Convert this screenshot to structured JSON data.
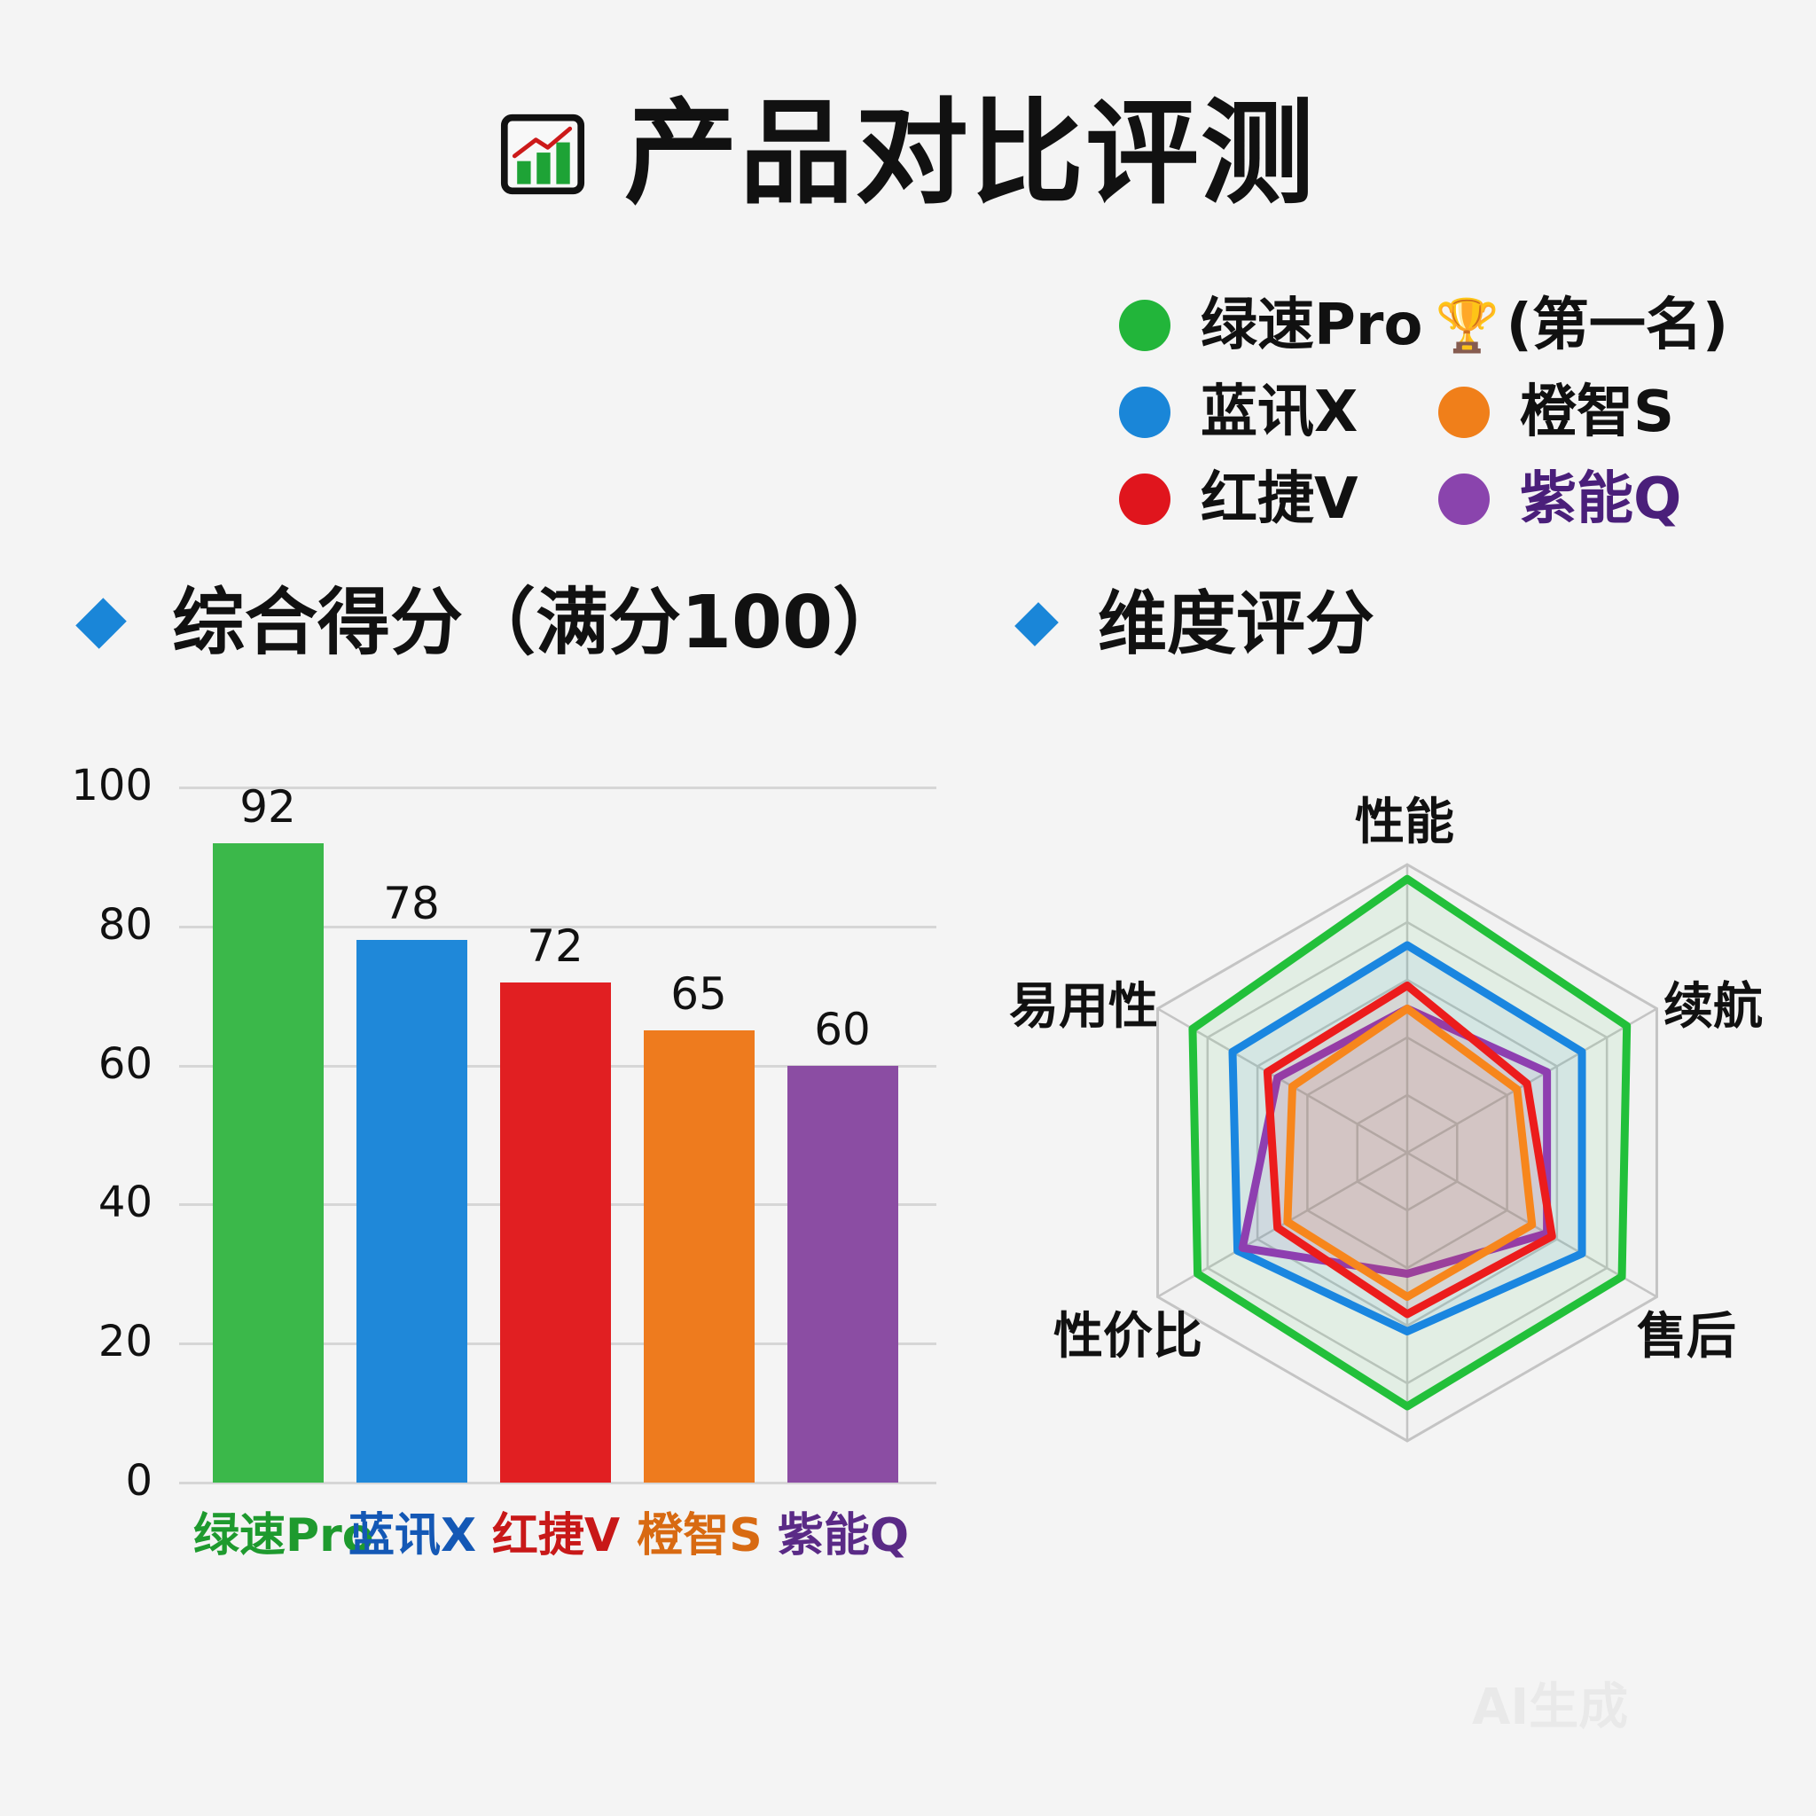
{
  "title": {
    "icon": "chart-trend-icon",
    "text": "产品对比评测"
  },
  "legend": {
    "items": [
      {
        "label": "绿速Pro",
        "color": "#22b53a",
        "badge": "🏆",
        "note": "(第一名)"
      },
      {
        "label": "蓝讯X",
        "color": "#1a86d8"
      },
      {
        "label": "橙智S",
        "color": "#f07f1a"
      },
      {
        "label": "红捷V",
        "color": "#e0151d"
      },
      {
        "label": "紫能Q",
        "color": "#8a44ad",
        "text_color": "#4a1f7a"
      }
    ]
  },
  "sections": {
    "overall": "综合得分（满分100）",
    "dimensions": "维度评分"
  },
  "watermark": "AI生成",
  "chart_data": [
    {
      "type": "bar",
      "title": "综合得分（满分100）",
      "categories": [
        "绿速Pro",
        "蓝讯X",
        "红捷V",
        "橙智S",
        "紫能Q"
      ],
      "values": [
        92,
        78,
        72,
        65,
        60
      ],
      "colors": [
        "#3bb84a",
        "#1f88d9",
        "#e11f22",
        "#ee7b1e",
        "#8b4da3"
      ],
      "label_colors": [
        "#1e9a2e",
        "#1458b5",
        "#c81818",
        "#d86a12",
        "#5a2a86"
      ],
      "xlabel": "",
      "ylabel": "",
      "ylim": [
        0,
        100
      ],
      "yticks": [
        0,
        20,
        40,
        60,
        80,
        100
      ],
      "grid": true,
      "data_labels": true
    },
    {
      "type": "radar",
      "title": "维度评分",
      "axes": [
        "性能",
        "续航",
        "售后",
        "",
        "性价比",
        "易用性"
      ],
      "range": [
        0,
        100
      ],
      "rings": 5,
      "series": [
        {
          "name": "绿速Pro",
          "color": "#22c03a",
          "values": [
            95,
            88,
            86,
            88,
            84,
            86
          ]
        },
        {
          "name": "蓝讯X",
          "color": "#1a86e0",
          "values": [
            72,
            70,
            70,
            62,
            68,
            70
          ]
        },
        {
          "name": "紫能Q",
          "color": "#8e3fb0",
          "values": [
            50,
            56,
            56,
            42,
            66,
            52
          ]
        },
        {
          "name": "红捷V",
          "color": "#ec1c1c",
          "values": [
            58,
            48,
            58,
            56,
            52,
            56
          ]
        },
        {
          "name": "橙智S",
          "color": "#f7861c",
          "values": [
            50,
            44,
            50,
            50,
            48,
            46
          ]
        }
      ]
    }
  ]
}
